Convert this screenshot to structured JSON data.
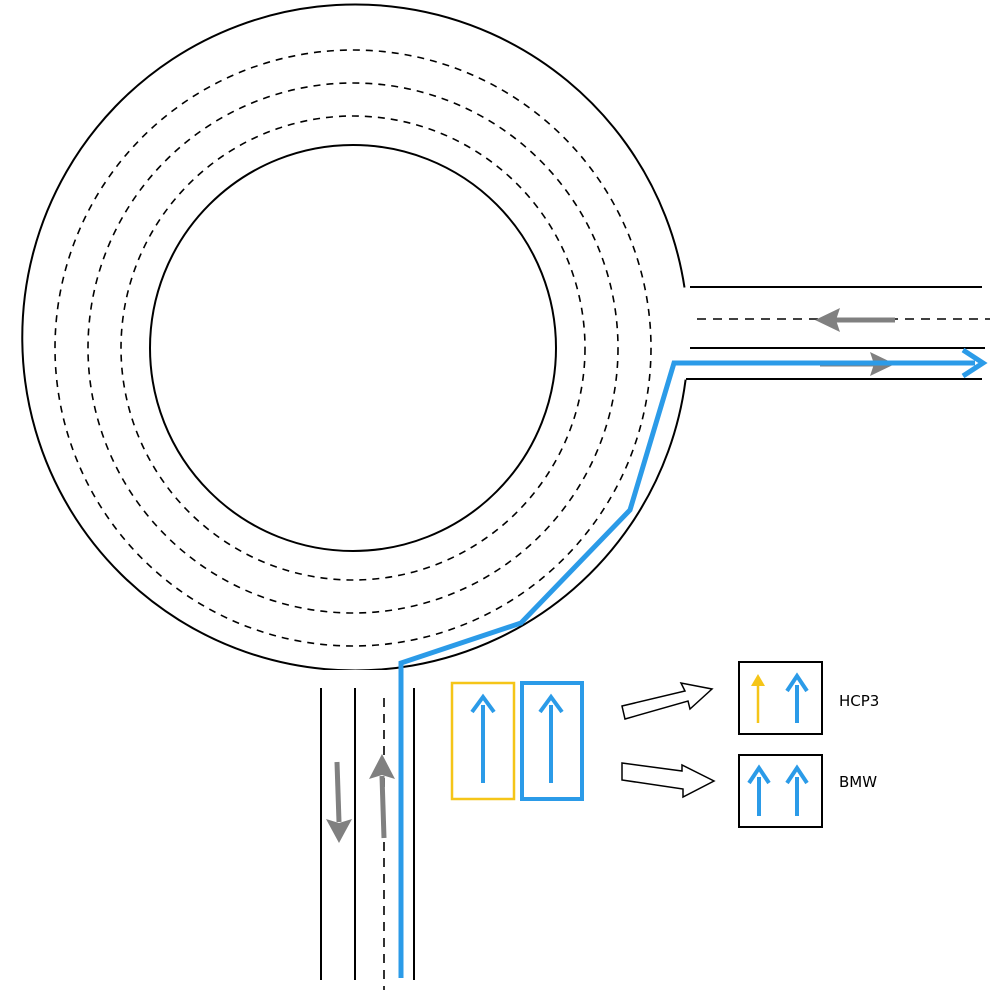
{
  "labels": {
    "hcp3": "HCP3",
    "bmw": "BMW"
  },
  "colors": {
    "route": "#2b9be8",
    "hcp3_accent": "#f5c518",
    "traffic_arrow": "#808080",
    "road_line": "#000000",
    "background": "#ffffff"
  },
  "icons": {
    "traffic_direction": "gray-arrow-icon",
    "lane_arrow": "up-arrow-icon",
    "pointer": "outline-right-arrow-icon"
  }
}
